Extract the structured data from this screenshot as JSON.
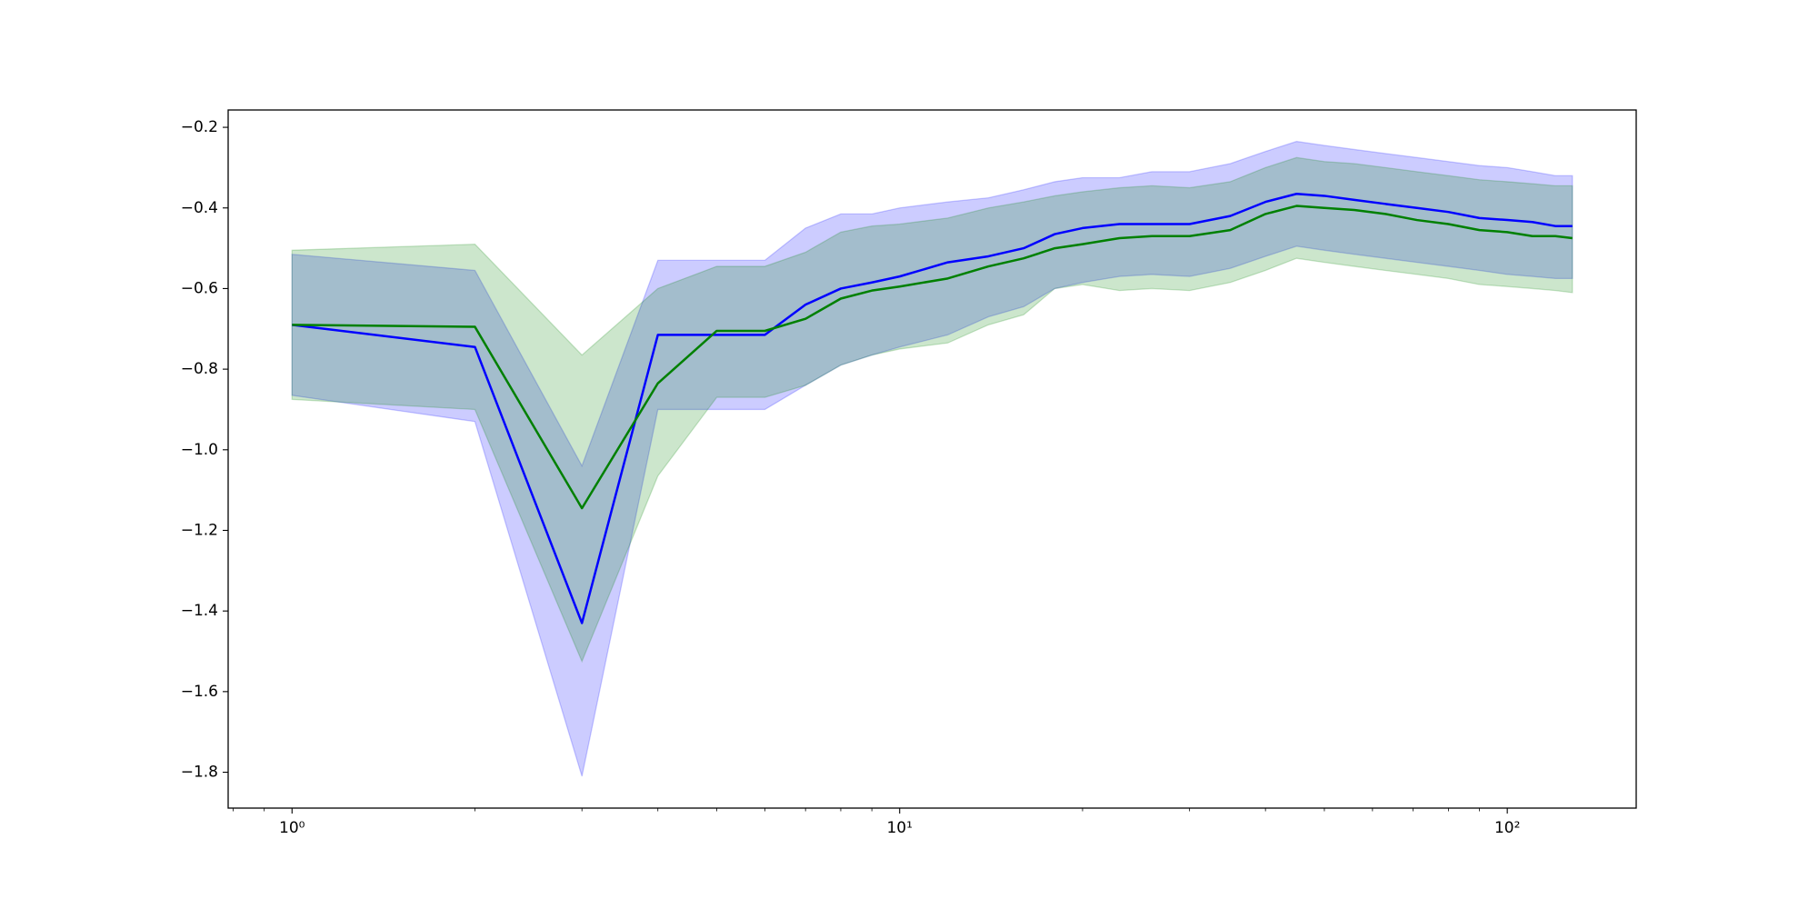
{
  "chart_data": {
    "type": "line",
    "xscale": "log",
    "x": [
      1,
      2,
      3,
      4,
      5,
      6,
      7,
      8,
      9,
      10,
      12,
      14,
      16,
      18,
      20,
      23,
      26,
      30,
      35,
      40,
      45,
      50,
      56,
      63,
      71,
      80,
      90,
      100,
      110,
      120,
      128
    ],
    "series": [
      {
        "color": "#0000ff",
        "band_color": "#0000ff",
        "band_opacity": 0.2,
        "values": [
          -0.69,
          -0.745,
          -1.43,
          -0.715,
          -0.715,
          -0.715,
          -0.64,
          -0.6,
          -0.585,
          -0.57,
          -0.535,
          -0.52,
          -0.5,
          -0.465,
          -0.45,
          -0.44,
          -0.44,
          -0.44,
          -0.42,
          -0.385,
          -0.365,
          -0.37,
          -0.38,
          -0.39,
          -0.4,
          -0.41,
          -0.425,
          -0.43,
          -0.435,
          -0.445,
          -0.445
        ],
        "upper": [
          -0.515,
          -0.555,
          -1.04,
          -0.53,
          -0.53,
          -0.53,
          -0.45,
          -0.415,
          -0.415,
          -0.4,
          -0.385,
          -0.375,
          -0.355,
          -0.335,
          -0.325,
          -0.325,
          -0.31,
          -0.31,
          -0.29,
          -0.26,
          -0.235,
          -0.245,
          -0.255,
          -0.265,
          -0.275,
          -0.285,
          -0.295,
          -0.3,
          -0.31,
          -0.32,
          -0.32
        ],
        "lower": [
          -0.865,
          -0.93,
          -1.81,
          -0.9,
          -0.9,
          -0.9,
          -0.84,
          -0.79,
          -0.765,
          -0.745,
          -0.715,
          -0.67,
          -0.645,
          -0.6,
          -0.585,
          -0.57,
          -0.565,
          -0.57,
          -0.55,
          -0.52,
          -0.495,
          -0.505,
          -0.515,
          -0.525,
          -0.535,
          -0.545,
          -0.555,
          -0.565,
          -0.57,
          -0.575,
          -0.575
        ]
      },
      {
        "color": "#008000",
        "band_color": "#008000",
        "band_opacity": 0.2,
        "values": [
          -0.69,
          -0.695,
          -1.145,
          -0.835,
          -0.705,
          -0.705,
          -0.675,
          -0.625,
          -0.605,
          -0.595,
          -0.575,
          -0.545,
          -0.525,
          -0.5,
          -0.49,
          -0.475,
          -0.47,
          -0.47,
          -0.455,
          -0.415,
          -0.395,
          -0.4,
          -0.405,
          -0.415,
          -0.43,
          -0.44,
          -0.455,
          -0.46,
          -0.47,
          -0.47,
          -0.475
        ],
        "upper": [
          -0.505,
          -0.49,
          -0.765,
          -0.6,
          -0.545,
          -0.545,
          -0.51,
          -0.46,
          -0.445,
          -0.44,
          -0.425,
          -0.4,
          -0.385,
          -0.37,
          -0.36,
          -0.35,
          -0.345,
          -0.35,
          -0.335,
          -0.3,
          -0.275,
          -0.285,
          -0.29,
          -0.3,
          -0.31,
          -0.32,
          -0.33,
          -0.335,
          -0.34,
          -0.345,
          -0.345
        ],
        "lower": [
          -0.875,
          -0.9,
          -1.525,
          -1.065,
          -0.87,
          -0.87,
          -0.84,
          -0.79,
          -0.765,
          -0.75,
          -0.735,
          -0.69,
          -0.665,
          -0.6,
          -0.59,
          -0.605,
          -0.6,
          -0.605,
          -0.585,
          -0.555,
          -0.525,
          -0.535,
          -0.545,
          -0.555,
          -0.565,
          -0.575,
          -0.59,
          -0.595,
          -0.6,
          -0.605,
          -0.61
        ]
      }
    ],
    "xlim": [
      0.785,
      163
    ],
    "ylim": [
      -1.889,
      -0.157
    ],
    "xticks": [
      {
        "value": 1,
        "label": "10⁰"
      },
      {
        "value": 10,
        "label": "10¹"
      },
      {
        "value": 100,
        "label": "10²"
      }
    ],
    "xminorticks": [
      0.8,
      0.9,
      2,
      3,
      4,
      5,
      6,
      7,
      8,
      9,
      20,
      30,
      40,
      50,
      60,
      70,
      80,
      90
    ],
    "yticks": [
      {
        "value": -1.8,
        "label": "−1.8"
      },
      {
        "value": -1.6,
        "label": "−1.6"
      },
      {
        "value": -1.4,
        "label": "−1.4"
      },
      {
        "value": -1.2,
        "label": "−1.2"
      },
      {
        "value": -1.0,
        "label": "−1.0"
      },
      {
        "value": -0.8,
        "label": "−0.8"
      },
      {
        "value": -0.6,
        "label": "−0.6"
      },
      {
        "value": -0.4,
        "label": "−0.4"
      },
      {
        "value": -0.2,
        "label": "−0.2"
      }
    ]
  }
}
